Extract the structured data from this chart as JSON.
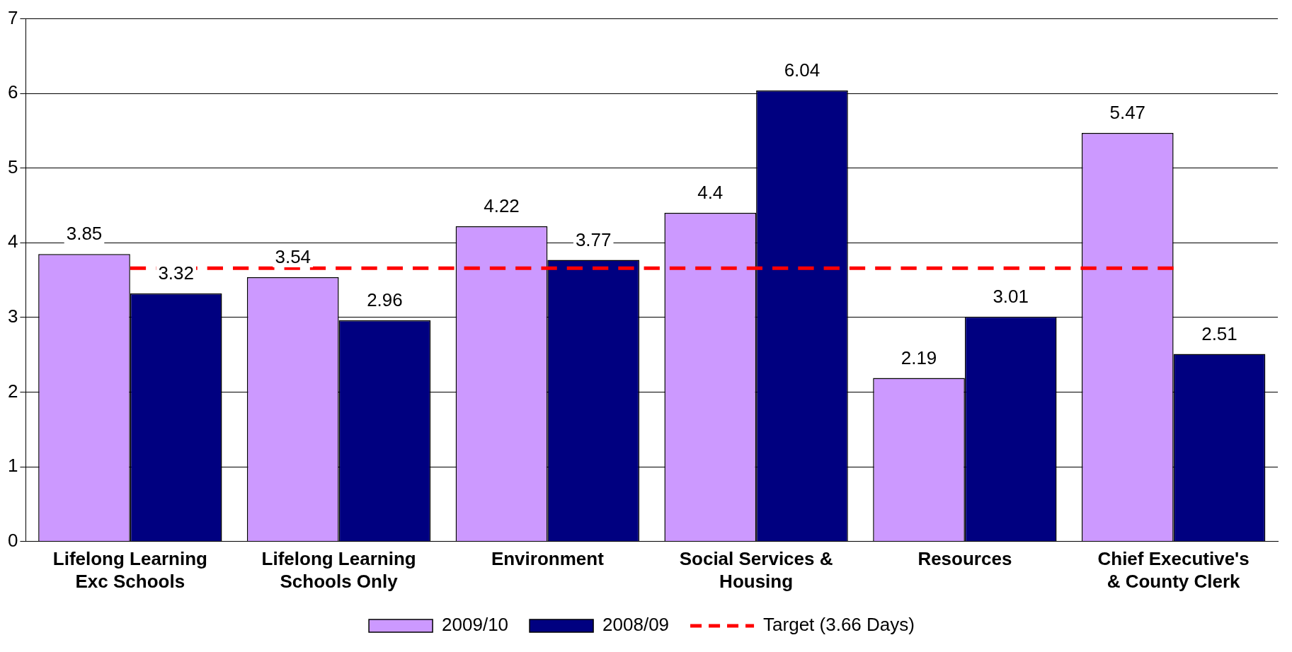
{
  "chart_data": {
    "type": "bar",
    "categories": [
      "Lifelong Learning Exc Schools",
      "Lifelong Learning Schools Only",
      "Environment",
      "Social Services & Housing",
      "Resources",
      "Chief Executive's & County Clerk"
    ],
    "series": [
      {
        "name": "2009/10",
        "color": "#cc99ff",
        "values": [
          3.85,
          3.54,
          4.22,
          4.4,
          2.19,
          5.47
        ],
        "value_labels": [
          "3.85",
          "3.54",
          "4.22",
          "4.4",
          "2.19",
          "5.47"
        ]
      },
      {
        "name": "2008/09",
        "color": "#000080",
        "values": [
          3.32,
          2.96,
          3.77,
          6.04,
          3.01,
          2.51
        ],
        "value_labels": [
          "3.32",
          "2.96",
          "3.77",
          "6.04",
          "3.01",
          "2.51"
        ]
      },
      {
        "name": "Target (3.66 Days)",
        "type": "line",
        "color": "#ff0000",
        "line_style": "dashed",
        "marker": "none",
        "values": [
          3.66,
          3.66,
          3.66,
          3.66,
          3.66,
          3.66
        ]
      }
    ],
    "ylim": [
      0,
      7
    ],
    "yticks": [
      0,
      1,
      2,
      3,
      4,
      5,
      6,
      7
    ],
    "grid": "y",
    "legend": "bottom"
  }
}
